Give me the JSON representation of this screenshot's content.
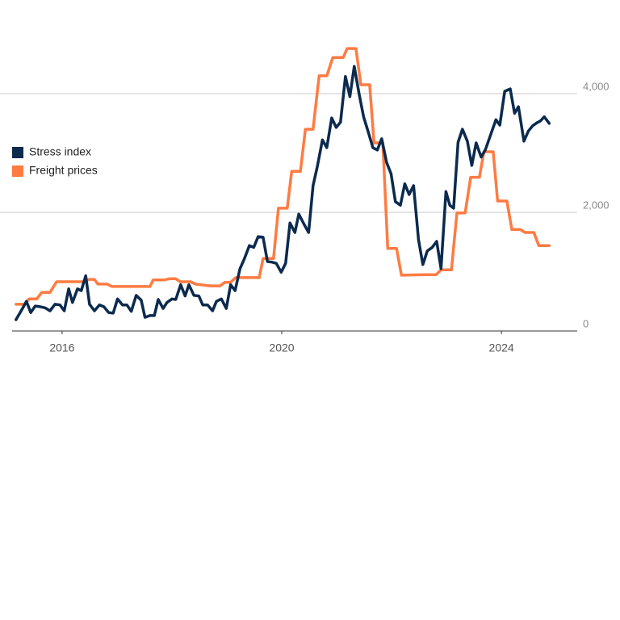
{
  "chart_data": {
    "type": "line",
    "xlim": [
      2015.09,
      2025.38
    ],
    "xticks": [
      2016,
      2020,
      2024
    ],
    "ylim": [
      0,
      5000
    ],
    "yticks": [
      0,
      {
        "value": 2000,
        "label": "2,000"
      },
      {
        "value": 4000,
        "label": "4,000"
      }
    ],
    "grid": true,
    "legend": "left",
    "series": [
      {
        "name": "Stress index",
        "color": "#0b2a4e",
        "x": [
          2015.16,
          2015.28,
          2015.35,
          2015.43,
          2015.51,
          2015.6,
          2015.69,
          2015.78,
          2015.87,
          2015.96,
          2016.04,
          2016.12,
          2016.19,
          2016.28,
          2016.35,
          2016.43,
          2016.5,
          2016.59,
          2016.68,
          2016.76,
          2016.85,
          2016.93,
          2017.01,
          2017.1,
          2017.18,
          2017.26,
          2017.35,
          2017.44,
          2017.51,
          2017.6,
          2017.68,
          2017.75,
          2017.84,
          2017.91,
          2018.0,
          2018.07,
          2018.16,
          2018.24,
          2018.31,
          2018.4,
          2018.49,
          2018.56,
          2018.65,
          2018.74,
          2018.81,
          2018.9,
          2018.99,
          2019.07,
          2019.15,
          2019.24,
          2019.32,
          2019.41,
          2019.49,
          2019.57,
          2019.66,
          2019.74,
          2019.82,
          2019.9,
          2019.99,
          2020.07,
          2020.15,
          2020.24,
          2020.31,
          2020.4,
          2020.49,
          2020.57,
          2020.65,
          2020.74,
          2020.82,
          2020.91,
          2020.99,
          2021.07,
          2021.16,
          2021.24,
          2021.32,
          2021.41,
          2021.49,
          2021.57,
          2021.66,
          2021.74,
          2021.82,
          2021.91,
          2021.99,
          2022.07,
          2022.16,
          2022.24,
          2022.32,
          2022.4,
          2022.49,
          2022.57,
          2022.65,
          2022.74,
          2022.82,
          2022.9,
          2022.99,
          2023.06,
          2023.13,
          2023.21,
          2023.29,
          2023.38,
          2023.46,
          2023.54,
          2023.63,
          2023.71,
          2023.79,
          2023.9,
          2023.97,
          2024.06,
          2024.16,
          2024.24,
          2024.31,
          2024.41,
          2024.49,
          2024.57,
          2024.65,
          2024.71,
          2024.78,
          2024.87
        ],
        "values": [
          190,
          380,
          500,
          310,
          420,
          410,
          390,
          340,
          450,
          440,
          340,
          710,
          480,
          710,
          680,
          930,
          450,
          340,
          440,
          410,
          310,
          300,
          540,
          440,
          440,
          330,
          600,
          520,
          230,
          260,
          260,
          530,
          380,
          480,
          540,
          530,
          780,
          590,
          780,
          600,
          590,
          440,
          440,
          340,
          500,
          540,
          380,
          780,
          680,
          1050,
          1220,
          1440,
          1410,
          1590,
          1580,
          1170,
          1160,
          1140,
          990,
          1140,
          1820,
          1660,
          1970,
          1810,
          1660,
          2450,
          2780,
          3220,
          3090,
          3590,
          3430,
          3520,
          4290,
          3950,
          4460,
          3990,
          3610,
          3370,
          3090,
          3050,
          3240,
          2840,
          2650,
          2180,
          2120,
          2480,
          2300,
          2450,
          1540,
          1120,
          1350,
          1410,
          1510,
          1050,
          2350,
          2120,
          2070,
          3180,
          3400,
          3200,
          2790,
          3170,
          2930,
          3060,
          3270,
          3560,
          3470,
          4040,
          4080,
          3670,
          3780,
          3200,
          3370,
          3460,
          3510,
          3540,
          3610,
          3500
        ]
      },
      {
        "name": "Freight prices",
        "color": "#ff7b42",
        "x": [
          2015.16,
          2015.32,
          2015.4,
          2015.54,
          2015.63,
          2015.78,
          2015.9,
          2016.09,
          2016.38,
          2016.49,
          2016.59,
          2016.65,
          2016.82,
          2016.91,
          2017.46,
          2017.6,
          2017.66,
          2017.85,
          2017.96,
          2018.07,
          2018.15,
          2018.34,
          2018.43,
          2018.69,
          2018.88,
          2018.96,
          2019.07,
          2019.16,
          2019.59,
          2019.66,
          2019.85,
          2019.94,
          2020.1,
          2020.18,
          2020.34,
          2020.43,
          2020.57,
          2020.68,
          2020.82,
          2020.93,
          2021.12,
          2021.19,
          2021.35,
          2021.44,
          2021.6,
          2021.68,
          2021.84,
          2021.93,
          2022.09,
          2022.18,
          2022.6,
          2022.81,
          2022.9,
          2023.09,
          2023.19,
          2023.34,
          2023.44,
          2023.6,
          2023.68,
          2023.85,
          2023.93,
          2024.1,
          2024.19,
          2024.34,
          2024.43,
          2024.59,
          2024.68,
          2024.87
        ],
        "values": [
          450,
          450,
          540,
          540,
          650,
          650,
          830,
          830,
          830,
          870,
          870,
          790,
          790,
          750,
          750,
          750,
          860,
          860,
          880,
          880,
          830,
          830,
          790,
          760,
          760,
          820,
          820,
          900,
          900,
          1220,
          1220,
          2070,
          2070,
          2690,
          2690,
          3400,
          3400,
          4300,
          4300,
          4610,
          4610,
          4760,
          4760,
          4150,
          4150,
          3170,
          3170,
          1390,
          1390,
          940,
          950,
          950,
          1030,
          1030,
          1990,
          1990,
          2590,
          2590,
          3020,
          3020,
          2190,
          2190,
          1710,
          1710,
          1660,
          1660,
          1440,
          1440
        ]
      }
    ]
  }
}
